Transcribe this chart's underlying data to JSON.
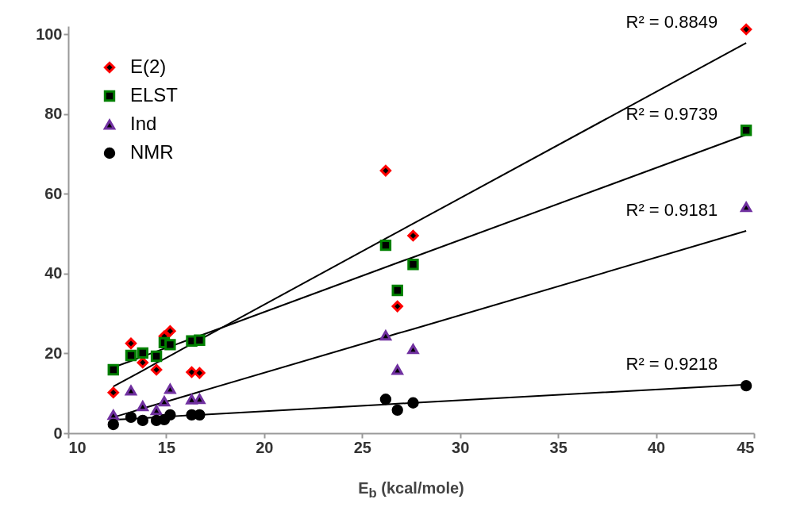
{
  "chart_data": {
    "type": "scatter",
    "xlabel": "E$_{b}$ (kcal/mole)",
    "xlim": [
      10,
      45
    ],
    "ylim": [
      0,
      102
    ],
    "xticks": [
      10,
      15,
      20,
      25,
      30,
      35,
      40,
      45
    ],
    "yticks": [
      0,
      20,
      40,
      60,
      80,
      100
    ],
    "grid": false,
    "legend": "top left",
    "x": [
      12.3,
      13.2,
      13.8,
      14.5,
      14.9,
      15.2,
      16.3,
      16.7,
      26.2,
      26.8,
      27.6,
      44.6
    ],
    "series": [
      {
        "name": "E(2)",
        "color": "#ff0000",
        "marker": "diamond",
        "values": [
          10.2,
          22.5,
          17.7,
          15.9,
          24.3,
          25.6,
          15.3,
          15.1,
          65.8,
          31.8,
          49.5,
          101.2
        ]
      },
      {
        "name": "ELST",
        "color": "#008000",
        "marker": "square",
        "values": [
          15.9,
          19.5,
          20.1,
          19.3,
          22.7,
          22.2,
          23.1,
          23.3,
          47.1,
          35.8,
          42.3,
          75.9
        ]
      },
      {
        "name": "Ind",
        "color": "#7030a0",
        "marker": "triangle",
        "values": [
          4.6,
          10.7,
          6.8,
          5.8,
          8.0,
          11.1,
          8.5,
          8.6,
          24.5,
          15.9,
          21.1,
          56.7
        ]
      },
      {
        "name": "NMR",
        "color": "#000000",
        "marker": "circle",
        "values": [
          2.2,
          4.0,
          3.2,
          3.2,
          3.4,
          4.6,
          4.6,
          4.6,
          8.5,
          5.8,
          7.6,
          11.9
        ]
      },
      {
        "type": "line",
        "color": "#000000",
        "values": [
          11.7,
          14.1,
          15.7,
          17.6,
          18.6,
          19.4,
          22.4,
          23.4,
          48.8,
          50.4,
          52.5,
          97.8
        ]
      },
      {
        "type": "line",
        "color": "#000000",
        "values": [
          16.5,
          18.1,
          19.2,
          20.5,
          21.2,
          21.7,
          23.7,
          24.4,
          41.6,
          42.7,
          44.1,
          74.8
        ]
      },
      {
        "type": "line",
        "color": "#000000",
        "values": [
          4.0,
          5.3,
          6.2,
          7.2,
          7.8,
          8.2,
          9.8,
          10.4,
          24.1,
          25.0,
          26.1,
          50.7
        ]
      },
      {
        "type": "line",
        "color": "#000000",
        "values": [
          3.4,
          3.6,
          3.8,
          4.0,
          4.1,
          4.2,
          4.5,
          4.6,
          7.2,
          7.4,
          7.6,
          12.2
        ]
      }
    ],
    "annotations": [
      "R² = 0.8849",
      "R² = 0.9739",
      "R² = 0.9181",
      "R² = 0.9218"
    ]
  }
}
